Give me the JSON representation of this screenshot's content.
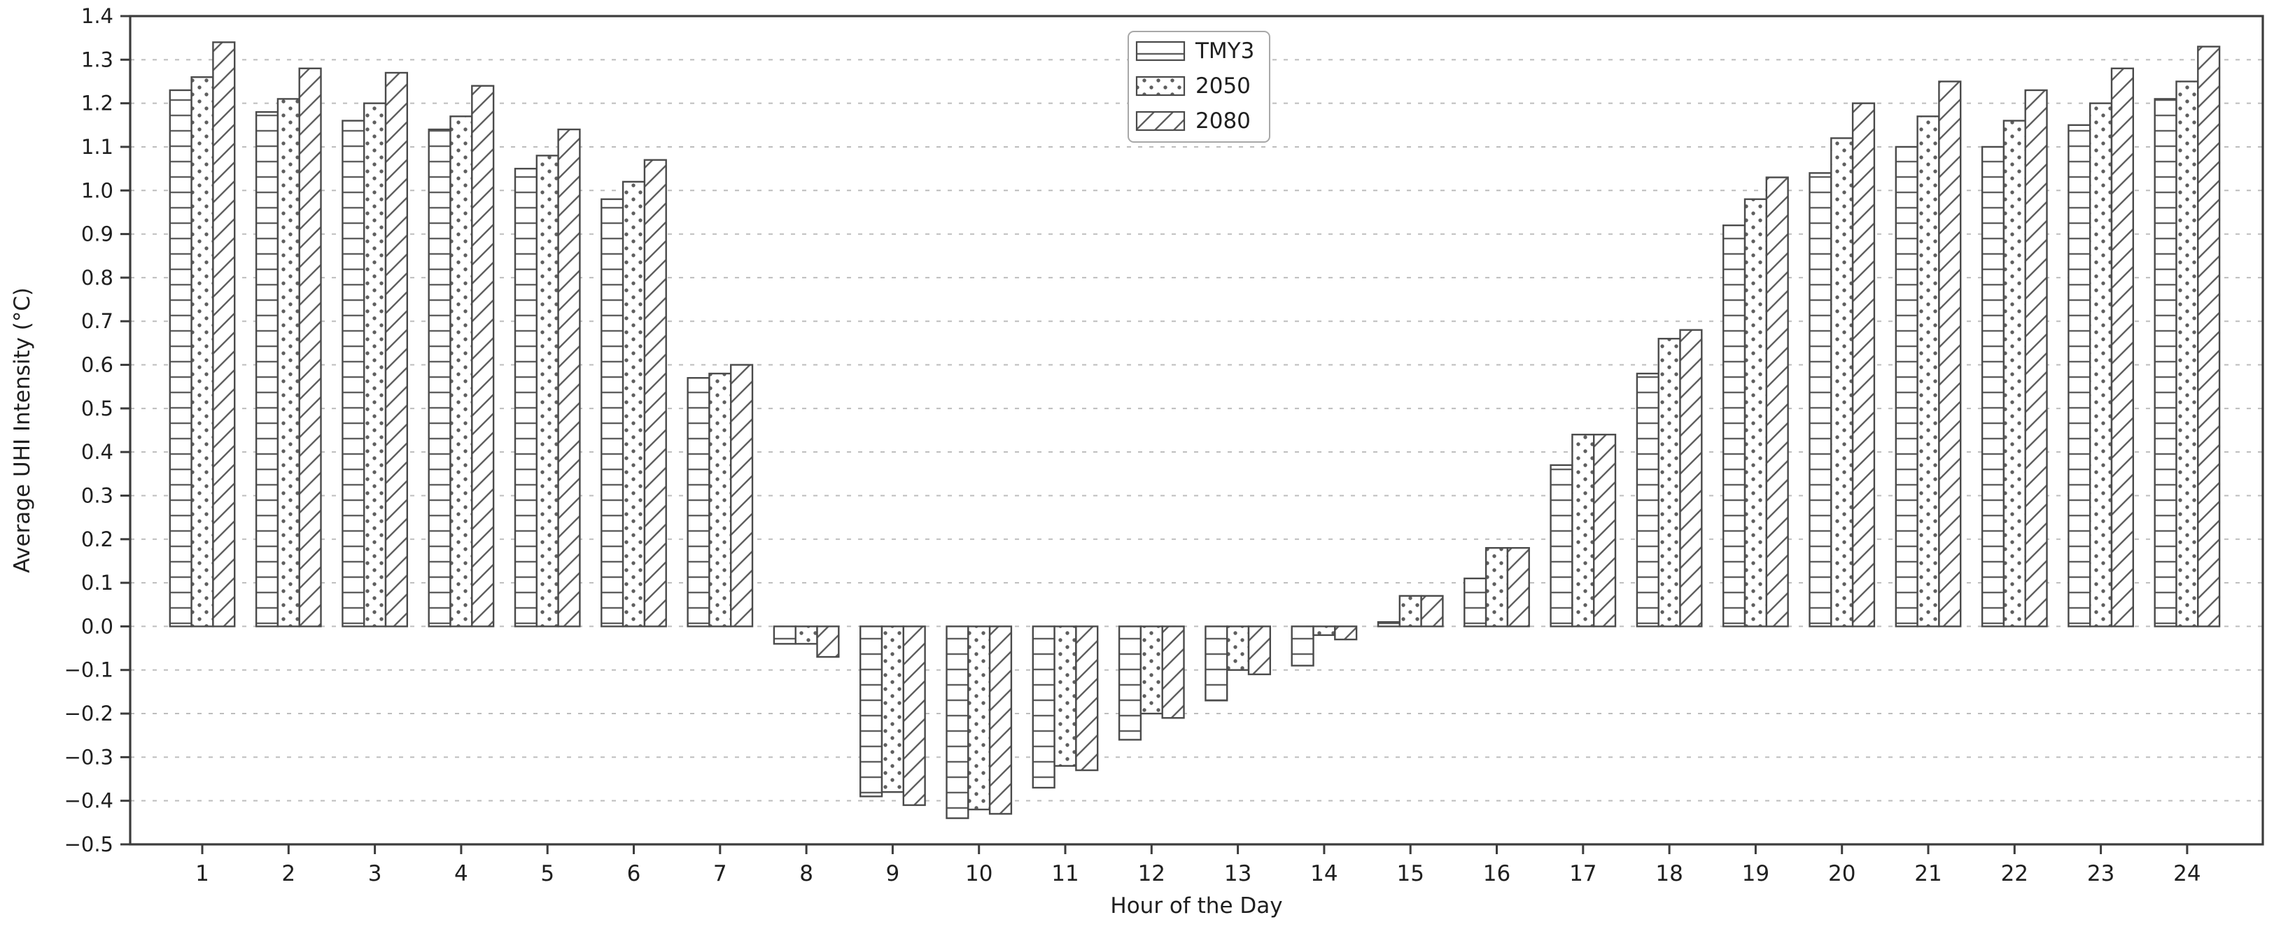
{
  "figure": {
    "background": "#ffffff"
  },
  "chart_data": {
    "type": "bar",
    "title": "",
    "xlabel": "Hour of the Day",
    "ylabel": "Average UHI Intensity (°C)",
    "categories": [
      1,
      2,
      3,
      4,
      5,
      6,
      7,
      8,
      9,
      10,
      11,
      12,
      13,
      14,
      15,
      16,
      17,
      18,
      19,
      20,
      21,
      22,
      23,
      24
    ],
    "series": [
      {
        "name": "TMY3",
        "hatch": "horizontal",
        "values": [
          1.23,
          1.18,
          1.16,
          1.14,
          1.05,
          0.98,
          0.57,
          -0.04,
          -0.39,
          -0.44,
          -0.37,
          -0.26,
          -0.17,
          -0.09,
          0.01,
          0.11,
          0.37,
          0.58,
          0.92,
          1.04,
          1.1,
          1.1,
          1.15,
          1.21
        ]
      },
      {
        "name": "2050",
        "hatch": "dots",
        "values": [
          1.26,
          1.21,
          1.2,
          1.17,
          1.08,
          1.02,
          0.58,
          -0.04,
          -0.38,
          -0.42,
          -0.32,
          -0.2,
          -0.1,
          -0.02,
          0.07,
          0.18,
          0.44,
          0.66,
          0.98,
          1.12,
          1.17,
          1.16,
          1.2,
          1.25
        ]
      },
      {
        "name": "2080",
        "hatch": "diagonal",
        "values": [
          1.34,
          1.28,
          1.27,
          1.24,
          1.14,
          1.07,
          0.6,
          -0.07,
          -0.41,
          -0.43,
          -0.33,
          -0.21,
          -0.11,
          -0.03,
          0.07,
          0.18,
          0.44,
          0.68,
          1.03,
          1.2,
          1.25,
          1.23,
          1.28,
          1.33
        ]
      }
    ],
    "ylim": [
      -0.5,
      1.4
    ],
    "ytick_step": 0.1,
    "ytick_labels": [
      "1.4",
      "1.3",
      "1.2",
      "1.1",
      "1.0",
      "0.9",
      "0.8",
      "0.7",
      "0.6",
      "0.5",
      "0.4",
      "0.3",
      "0.2",
      "0.1",
      "0.0",
      "−0.1",
      "−0.2",
      "−0.3",
      "−0.4",
      "−0.5"
    ],
    "grid": "horizontal-dashed",
    "legend": {
      "position": "upper-center",
      "entries": [
        "TMY3",
        "2050",
        "2080"
      ]
    },
    "colors": {
      "bar_fill": "#ffffff",
      "bar_edge": "#4a4a4a",
      "hatch": "#5f5f5f",
      "grid": "#bdbdbd",
      "spine": "#3c3c3c",
      "text": "#1f1f1f",
      "legend_border": "#a8a8a8"
    }
  }
}
